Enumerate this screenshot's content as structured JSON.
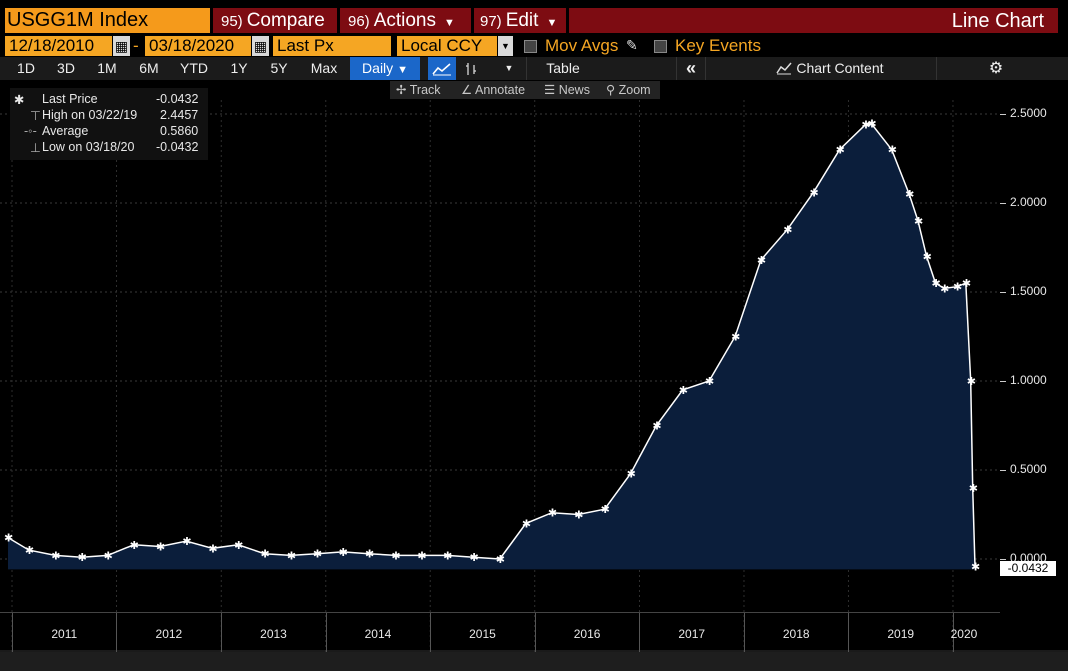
{
  "header": {
    "ticker": "USGG1M Index",
    "compare": {
      "num": "95)",
      "label": "Compare"
    },
    "actions": {
      "num": "96)",
      "label": "Actions"
    },
    "edit": {
      "num": "97)",
      "label": "Edit"
    },
    "chart_type": "Line Chart"
  },
  "controls": {
    "start_date": "12/18/2010",
    "end_date": "03/18/2020",
    "separator": "-",
    "field": "Last Px",
    "currency": "Local CCY",
    "mov_avgs": "Mov Avgs",
    "key_events": "Key Events"
  },
  "toolbar": {
    "ranges": [
      "1D",
      "3D",
      "1M",
      "6M",
      "YTD",
      "1Y",
      "5Y",
      "Max"
    ],
    "frequency": "Daily",
    "table": "Table",
    "chart_content": "Chart Content",
    "icons": [
      "line-chart-icon",
      "bar-chart-icon",
      "dropdown-icon",
      "collapse-icon",
      "chart-content-icon",
      "gear-icon"
    ]
  },
  "subtoolbar": {
    "track": "Track",
    "annotate": "Annotate",
    "news": "News",
    "zoom": "Zoom"
  },
  "legend": {
    "last_label": "Last Price",
    "last_value": "-0.0432",
    "high_label": "High on 03/22/19",
    "high_value": "2.4457",
    "avg_label": "Average",
    "avg_value": "0.5860",
    "low_label": "Low on 03/18/20",
    "low_value": "-0.0432"
  },
  "colors": {
    "accent": "#f59a1b",
    "red": "#7d0c12",
    "area": "#0b1e3b",
    "line": "#ffffff",
    "selected": "#1b67c9"
  },
  "chart_data": {
    "type": "area",
    "title": "",
    "x": [
      "2010-12-18",
      "2011-03-01",
      "2011-06-01",
      "2011-09-01",
      "2011-12-01",
      "2012-03-01",
      "2012-06-01",
      "2012-09-01",
      "2012-12-01",
      "2013-03-01",
      "2013-06-01",
      "2013-09-01",
      "2013-12-01",
      "2014-03-01",
      "2014-06-01",
      "2014-09-01",
      "2014-12-01",
      "2015-03-01",
      "2015-06-01",
      "2015-09-01",
      "2015-12-01",
      "2016-03-01",
      "2016-06-01",
      "2016-09-01",
      "2016-12-01",
      "2017-03-01",
      "2017-06-01",
      "2017-09-01",
      "2017-12-01",
      "2018-03-01",
      "2018-06-01",
      "2018-09-01",
      "2018-12-01",
      "2019-03-01",
      "2019-03-22",
      "2019-06-01",
      "2019-08-01",
      "2019-09-01",
      "2019-10-01",
      "2019-11-01",
      "2019-12-01",
      "2020-01-15",
      "2020-02-15",
      "2020-03-03",
      "2020-03-10",
      "2020-03-18"
    ],
    "series": [
      {
        "values": [
          0.12,
          0.05,
          0.02,
          0.01,
          0.02,
          0.08,
          0.07,
          0.1,
          0.06,
          0.08,
          0.03,
          0.02,
          0.03,
          0.04,
          0.03,
          0.02,
          0.02,
          0.02,
          0.01,
          0.0,
          0.2,
          0.26,
          0.25,
          0.28,
          0.48,
          0.75,
          0.95,
          1.0,
          1.25,
          1.68,
          1.85,
          2.06,
          2.3,
          2.44,
          2.4457,
          2.3,
          2.05,
          1.9,
          1.7,
          1.55,
          1.52,
          1.53,
          1.55,
          1.0,
          0.4,
          -0.0432
        ]
      }
    ],
    "y_ticks": [
      "2.5000",
      "2.0000",
      "1.5000",
      "1.0000",
      "0.5000",
      "0.0000"
    ],
    "ylim": [
      -0.3,
      2.6
    ],
    "x_ticks": [
      "2011",
      "2012",
      "2013",
      "2014",
      "2015",
      "2016",
      "2017",
      "2018",
      "2019",
      "2020"
    ],
    "last_value_label": "-0.0432",
    "grid": true
  }
}
